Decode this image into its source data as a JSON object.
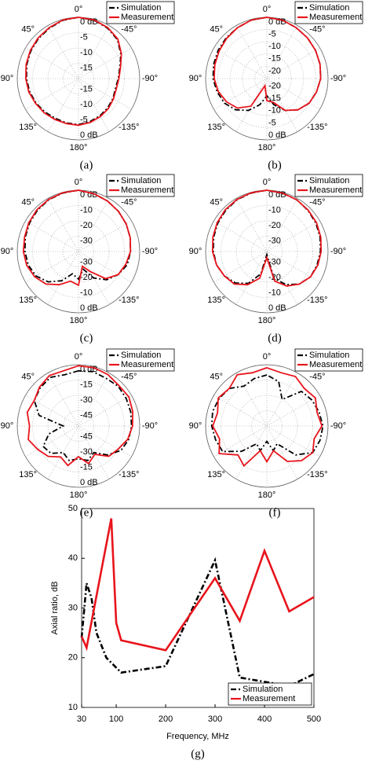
{
  "chart_data": [
    {
      "type": "polar",
      "caption": "(a)",
      "rlim": [
        -20,
        0
      ],
      "rticks": [
        {
          "value": 0,
          "label": "0 dB"
        },
        -5,
        -10,
        -15
      ],
      "angle_ticks": [
        {
          "value": 0,
          "label": "0°"
        },
        {
          "value": 45,
          "label": "45°"
        },
        {
          "value": -45,
          "label": "-45°"
        },
        {
          "value": 90,
          "label": "90°"
        },
        {
          "value": -90,
          "label": "-90°"
        },
        {
          "value": 135,
          "label": "135°"
        },
        {
          "value": -135,
          "label": "-135°"
        },
        {
          "value": 180,
          "label": "180°"
        }
      ],
      "theta": [
        0,
        15,
        30,
        45,
        60,
        75,
        90,
        105,
        120,
        135,
        150,
        165,
        180,
        195,
        210,
        225,
        240,
        255,
        270,
        285,
        300,
        315,
        330,
        345
      ],
      "series": [
        {
          "name": "Simulation",
          "color": "#000000",
          "dash": "dashdot",
          "values": [
            0,
            -0.3,
            -1,
            -1.5,
            -2,
            -2.5,
            -3,
            -3.5,
            -4,
            -4.5,
            -5,
            -5,
            -5,
            -5.5,
            -6,
            -6.5,
            -7,
            -7.5,
            -7,
            -6,
            -4,
            -2,
            -1,
            -0.3
          ]
        },
        {
          "name": "Measurement",
          "color": "#e8141c",
          "dash": "solid",
          "values": [
            0,
            -0.2,
            -0.8,
            -1.3,
            -1.8,
            -2.3,
            -2.8,
            -3.2,
            -3.8,
            -4.2,
            -4.6,
            -4.8,
            -4.8,
            -5.2,
            -5.7,
            -6.2,
            -6.8,
            -7.2,
            -6.8,
            -5.8,
            -3.8,
            -1.8,
            -0.8,
            -0.2
          ]
        }
      ]
    },
    {
      "type": "polar",
      "caption": "(b)",
      "rlim": [
        -25,
        0
      ],
      "rticks": [
        {
          "value": 0,
          "label": "0 dB"
        },
        -5,
        -10,
        -15,
        -20
      ],
      "angle_ticks": [
        {
          "value": 0,
          "label": "0°"
        },
        {
          "value": 45,
          "label": "45°"
        },
        {
          "value": -45,
          "label": "-45°"
        },
        {
          "value": 90,
          "label": "90°"
        },
        {
          "value": -90,
          "label": "-90°"
        },
        {
          "value": 135,
          "label": "135°"
        },
        {
          "value": -135,
          "label": "-135°"
        },
        {
          "value": 180,
          "label": "180°"
        }
      ],
      "theta": [
        0,
        15,
        30,
        45,
        60,
        75,
        90,
        105,
        120,
        135,
        150,
        165,
        180,
        195,
        210,
        225,
        240,
        255,
        270,
        285,
        300,
        315,
        330,
        345
      ],
      "series": [
        {
          "name": "Simulation",
          "color": "#000000",
          "dash": "dashdot",
          "values": [
            0,
            -0.3,
            -1,
            -1.5,
            -2,
            -2.5,
            -3,
            -4,
            -5,
            -7,
            -10,
            -14,
            -18,
            -14,
            -10,
            -7,
            -5,
            -4,
            -3,
            -2.5,
            -2,
            -1.5,
            -1,
            -0.3
          ]
        },
        {
          "name": "Measurement",
          "color": "#e8141c",
          "dash": "solid",
          "values": [
            0,
            -0.3,
            -1,
            -1.8,
            -2.5,
            -3,
            -3.5,
            -4.5,
            -6,
            -8,
            -12,
            -22,
            -16,
            -15,
            -10,
            -7,
            -5,
            -4,
            -3,
            -2.5,
            -2,
            -1.5,
            -1,
            -0.3
          ]
        }
      ]
    },
    {
      "type": "polar",
      "caption": "(c)",
      "rlim": [
        -40,
        0
      ],
      "rticks": [
        {
          "value": 0,
          "label": "0 dB"
        },
        -10,
        -20,
        -30
      ],
      "angle_ticks": [
        {
          "value": 0,
          "label": "0°"
        },
        {
          "value": 45,
          "label": "45°"
        },
        {
          "value": -45,
          "label": "-45°"
        },
        {
          "value": 90,
          "label": "90°"
        },
        {
          "value": -90,
          "label": "-90°"
        },
        {
          "value": 135,
          "label": "135°"
        },
        {
          "value": -135,
          "label": "-135°"
        },
        {
          "value": 180,
          "label": "180°"
        }
      ],
      "theta": [
        0,
        15,
        30,
        45,
        60,
        75,
        90,
        105,
        120,
        135,
        150,
        165,
        180,
        195,
        210,
        225,
        240,
        255,
        270,
        285,
        300,
        315,
        330,
        345
      ],
      "series": [
        {
          "name": "Simulation",
          "color": "#000000",
          "dash": "dashdot",
          "values": [
            0,
            -0.5,
            -1,
            -2,
            -3,
            -4,
            -5,
            -6,
            -8,
            -12,
            -18,
            -25,
            -22,
            -28,
            -20,
            -14,
            -10,
            -7,
            -6,
            -5,
            -4,
            -3,
            -2,
            -1
          ]
        },
        {
          "name": "Measurement",
          "color": "#e8141c",
          "dash": "solid",
          "values": [
            0,
            -0.3,
            -0.8,
            -1.5,
            -2.5,
            -3.5,
            -4,
            -5,
            -7,
            -10,
            -15,
            -20,
            -18,
            -30,
            -25,
            -15,
            -10,
            -8,
            -6,
            -5,
            -4,
            -3,
            -2,
            -1
          ]
        }
      ]
    },
    {
      "type": "polar",
      "caption": "(d)",
      "rlim": [
        -40,
        0
      ],
      "rticks": [
        {
          "value": 0,
          "label": "0 dB"
        },
        -10,
        -20,
        -30
      ],
      "angle_ticks": [
        {
          "value": 0,
          "label": "0°"
        },
        {
          "value": 45,
          "label": "45°"
        },
        {
          "value": -45,
          "label": "-45°"
        },
        {
          "value": 90,
          "label": "90°"
        },
        {
          "value": -90,
          "label": "-90°"
        },
        {
          "value": 135,
          "label": "135°"
        },
        {
          "value": -135,
          "label": "-135°"
        },
        {
          "value": 180,
          "label": "180°"
        }
      ],
      "theta": [
        0,
        15,
        30,
        45,
        60,
        75,
        90,
        105,
        120,
        135,
        150,
        165,
        180,
        195,
        210,
        225,
        240,
        255,
        270,
        285,
        300,
        315,
        330,
        345
      ],
      "series": [
        {
          "name": "Simulation",
          "color": "#000000",
          "dash": "dashdot",
          "values": [
            0,
            -0.5,
            -1,
            -2,
            -3,
            -4,
            -5,
            -6,
            -8,
            -11,
            -16,
            -25,
            -38,
            -22,
            -15,
            -10,
            -7,
            -6,
            -5,
            -4,
            -3,
            -2,
            -1,
            -0.5
          ]
        },
        {
          "name": "Measurement",
          "color": "#e8141c",
          "dash": "solid",
          "values": [
            0,
            -0.3,
            -0.8,
            -1.5,
            -2.5,
            -3.5,
            -4.5,
            -6,
            -8,
            -10,
            -15,
            -22,
            -36,
            -20,
            -14,
            -10,
            -7,
            -5.5,
            -4.5,
            -3.5,
            -2.5,
            -1.8,
            -1,
            -0.5
          ]
        }
      ]
    },
    {
      "type": "polar",
      "caption": "(e)",
      "rlim": [
        -60,
        0
      ],
      "rticks": [
        {
          "value": 0,
          "label": "0 dB"
        },
        -15,
        -30,
        -45
      ],
      "angle_ticks": [
        {
          "value": 0,
          "label": "0°"
        },
        {
          "value": 45,
          "label": "45°"
        },
        {
          "value": -45,
          "label": "-45°"
        },
        {
          "value": 90,
          "label": "90°"
        },
        {
          "value": -90,
          "label": "-90°"
        },
        {
          "value": 135,
          "label": "135°"
        },
        {
          "value": -135,
          "label": "-135°"
        },
        {
          "value": 180,
          "label": "180°"
        }
      ],
      "theta": [
        0,
        15,
        30,
        45,
        60,
        75,
        90,
        105,
        120,
        135,
        150,
        165,
        180,
        195,
        210,
        225,
        240,
        255,
        270,
        285,
        300,
        315,
        330,
        345
      ],
      "series": [
        {
          "name": "Simulation",
          "color": "#000000",
          "dash": "dashdot",
          "values": [
            -6,
            -8,
            -5,
            -7,
            -10,
            -20,
            -45,
            -30,
            -20,
            -22,
            -30,
            -25,
            -28,
            -25,
            -30,
            -20,
            -12,
            -9,
            -8,
            -7,
            -6,
            -5,
            -6,
            -5
          ]
        },
        {
          "name": "Measurement",
          "color": "#e8141c",
          "dash": "solid",
          "values": [
            -1,
            -4,
            -3,
            -6,
            -10,
            -8,
            -12,
            -9,
            -14,
            -18,
            -25,
            -20,
            -30,
            -22,
            -28,
            -18,
            -15,
            -10,
            -7,
            -5,
            -3,
            -4,
            -2,
            -1
          ]
        }
      ]
    },
    {
      "type": "polar",
      "caption": "(f)",
      "rlim": [
        -60,
        0
      ],
      "angle_ticks": [
        {
          "value": 0,
          "label": "0°"
        },
        {
          "value": 45,
          "label": "45°"
        },
        {
          "value": -45,
          "label": "-45°"
        },
        {
          "value": 90,
          "label": "90°"
        },
        {
          "value": -90,
          "label": "-90°"
        },
        {
          "value": 135,
          "label": "135°"
        },
        {
          "value": -135,
          "label": "-135°"
        },
        {
          "value": 180,
          "label": "180°"
        }
      ],
      "theta": [
        0,
        15,
        30,
        45,
        60,
        75,
        90,
        105,
        120,
        135,
        150,
        165,
        180,
        195,
        210,
        225,
        240,
        255,
        270,
        285,
        300,
        315,
        330,
        345
      ],
      "series": [
        {
          "name": "Simulation",
          "color": "#000000",
          "dash": "dashdot",
          "values": [
            -10,
            -12,
            -15,
            -8,
            -6,
            -5,
            -6,
            -8,
            -10,
            -25,
            -40,
            -35,
            -45,
            -35,
            -40,
            -20,
            -8,
            -6,
            -5,
            -7,
            -9,
            -12,
            -30,
            -15
          ]
        },
        {
          "name": "Measurement",
          "color": "#e8141c",
          "dash": "solid",
          "values": [
            -3,
            -6,
            -2,
            -8,
            -5,
            -10,
            -7,
            -12,
            -6,
            -20,
            -15,
            -35,
            -25,
            -35,
            -20,
            -12,
            -8,
            -12,
            -6,
            -9,
            -5,
            -8,
            -4,
            -6
          ]
        }
      ]
    },
    {
      "type": "line",
      "caption": "(g)",
      "x_label": "Frequency, MHz",
      "y_label": "Axial ratio, dB",
      "xlim": [
        30,
        500
      ],
      "xticks": [
        30,
        100,
        200,
        300,
        400,
        500
      ],
      "ylim": [
        10,
        50
      ],
      "yticks": [
        10,
        20,
        30,
        40,
        50
      ],
      "legend": "lower right",
      "series": [
        {
          "name": "Simulation",
          "color": "#000000",
          "dash": "dashdot",
          "x": [
            30,
            40,
            50,
            60,
            80,
            100,
            110,
            200,
            300,
            350,
            450,
            500
          ],
          "values": [
            24,
            35,
            32,
            25,
            20,
            18,
            17,
            18.3,
            39.6,
            16,
            14.3,
            16.7
          ]
        },
        {
          "name": "Measurement",
          "color": "#e8141c",
          "dash": "solid",
          "x": [
            30,
            40,
            90,
            100,
            110,
            200,
            300,
            350,
            400,
            450,
            500
          ],
          "values": [
            24.3,
            22,
            48,
            27,
            23.5,
            21.5,
            36,
            27.4,
            41.5,
            29.3,
            32.2
          ]
        }
      ]
    }
  ]
}
